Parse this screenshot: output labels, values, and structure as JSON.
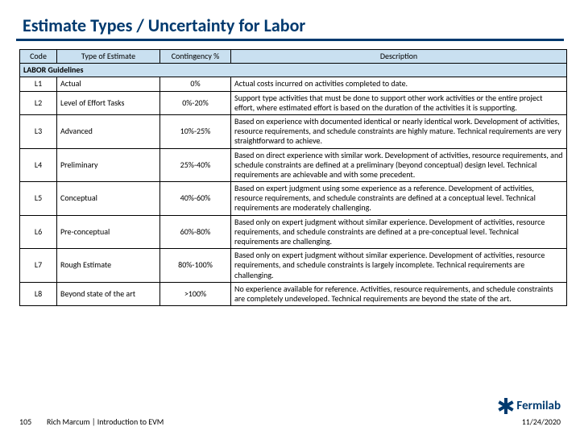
{
  "title": "Estimate Types / Uncertainty for Labor",
  "table": {
    "headers": {
      "code": "Code",
      "type": "Type of Estimate",
      "cont": "Contingency %",
      "desc": "Description"
    },
    "banner": "LABOR Guidelines",
    "rows": [
      {
        "code": "L1",
        "type": "Actual",
        "cont": "0%",
        "desc": "Actual costs incurred on activities completed to date."
      },
      {
        "code": "L2",
        "type": "Level of Effort Tasks",
        "cont": "0%-20%",
        "desc": "Support type activities that must be done to support other work activities or the entire project effort, where estimated effort is based on the duration of the activities it is supporting."
      },
      {
        "code": "L3",
        "type": "Advanced",
        "cont": "10%-25%",
        "desc": "Based on experience with documented identical or nearly identical work. Development of activities, resource requirements, and schedule constraints are highly mature. Technical requirements are very straightforward to achieve."
      },
      {
        "code": "L4",
        "type": "Preliminary",
        "cont": "25%-40%",
        "desc": "Based on direct experience with similar work. Development of activities, resource requirements, and schedule constraints are defined at a preliminary (beyond conceptual) design level. Technical requirements are achievable and with some precedent."
      },
      {
        "code": "L5",
        "type": "Conceptual",
        "cont": "40%-60%",
        "desc": "Based on expert judgment using some experience as a reference. Development of activities, resource requirements, and schedule constraints are defined at a conceptual level. Technical requirements are moderately challenging."
      },
      {
        "code": "L6",
        "type": "Pre-conceptual",
        "cont": "60%-80%",
        "desc": "Based only on expert judgment without similar experience. Development of activities, resource requirements, and schedule constraints are defined at a pre-conceptual level. Technical requirements are challenging."
      },
      {
        "code": "L7",
        "type": "Rough Estimate",
        "cont": "80%-100%",
        "desc": "Based only on expert judgment without similar experience. Development of activities, resource requirements, and schedule constraints is largely incomplete. Technical requirements are challenging."
      },
      {
        "code": "L8",
        "type": "Beyond state of the art",
        "cont": ">100%",
        "desc": "No experience available for reference. Activities, resource requirements, and schedule constraints are completely undeveloped. Technical requirements are beyond the state of the art."
      }
    ]
  },
  "footer": {
    "page": "105",
    "credit": "Rich Marcum | Introduction to EVM",
    "date": "11/24/2020"
  },
  "logo": {
    "text": "Fermilab"
  }
}
